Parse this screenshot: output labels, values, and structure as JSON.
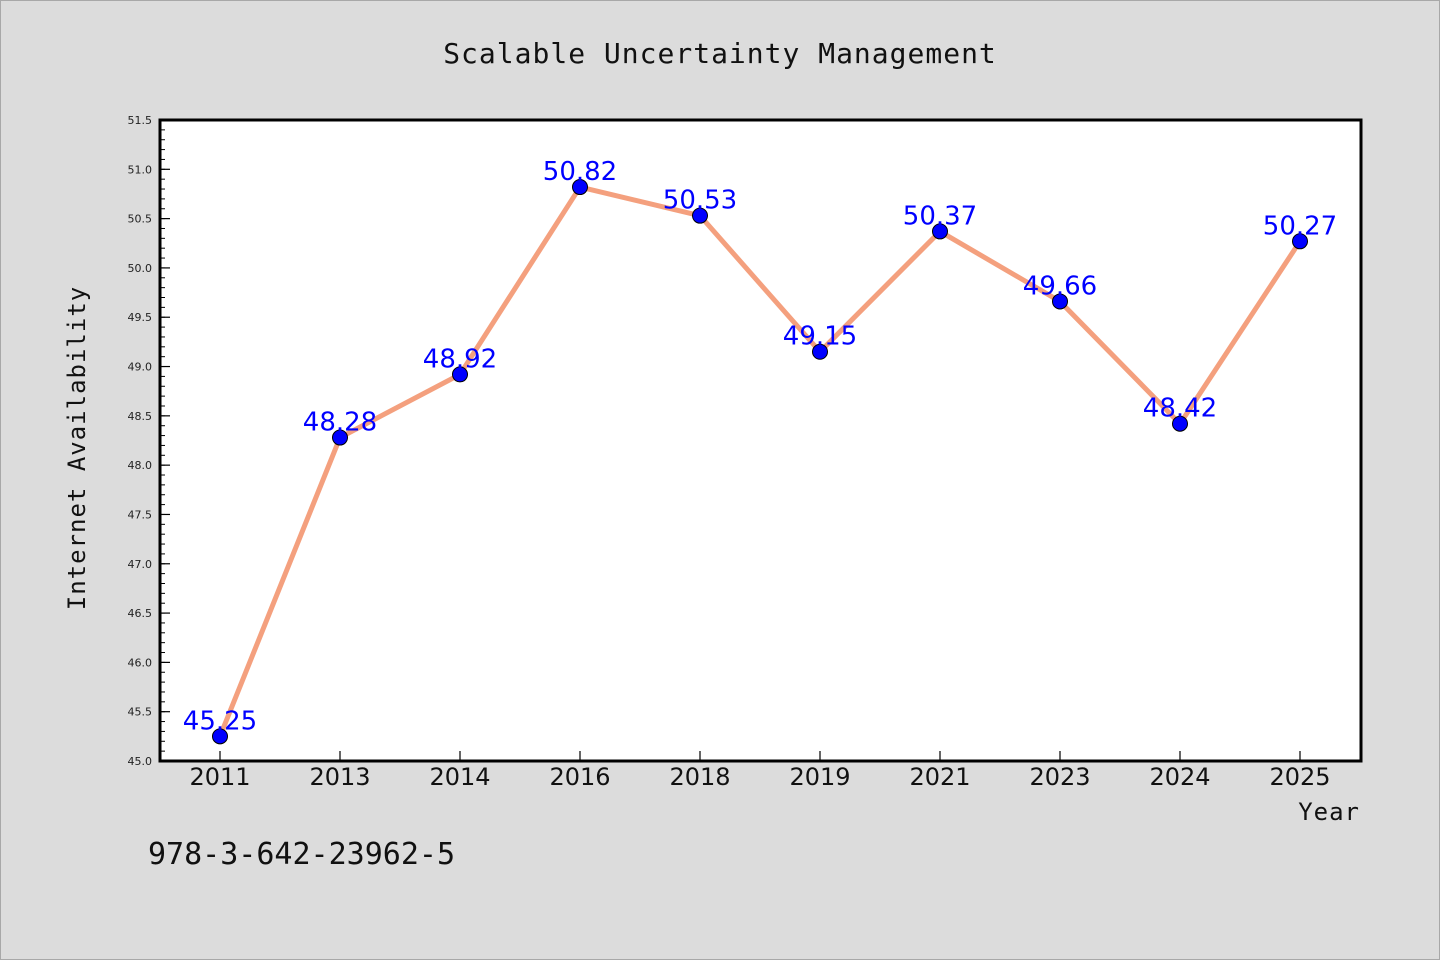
{
  "chart_data": {
    "type": "line",
    "title": "Scalable Uncertainty Management",
    "xlabel": "Year",
    "ylabel": "Internet Availability",
    "categories": [
      "2011",
      "2013",
      "2014",
      "2016",
      "2018",
      "2019",
      "2021",
      "2023",
      "2024",
      "2025"
    ],
    "series": [
      {
        "values": [
          45.25,
          48.28,
          48.92,
          50.82,
          50.53,
          49.15,
          50.37,
          49.66,
          48.42,
          50.27
        ],
        "data_labels": [
          "45.25",
          "48.28",
          "48.92",
          "50.82",
          "50.53",
          "49.15",
          "50.37",
          "49.66",
          "48.42",
          "50.27"
        ],
        "line_color": "#f4a07e",
        "marker_color": "#0000ff"
      }
    ],
    "ylim": [
      45.0,
      51.5
    ],
    "yticks": [
      "45.0",
      "45.5",
      "46.0",
      "46.5",
      "47.0",
      "47.5",
      "48.0",
      "48.5",
      "49.0",
      "49.5",
      "50.0",
      "50.5",
      "51.0",
      "51.5"
    ],
    "grid": false,
    "legend": "none"
  },
  "footer": {
    "isbn": "978-3-642-23962-5"
  },
  "colors": {
    "background": "#dcdcdc",
    "plot_background": "#ffffff",
    "line": "#f4a07e",
    "marker": "#0000ff",
    "data_label": "#0000ff"
  }
}
